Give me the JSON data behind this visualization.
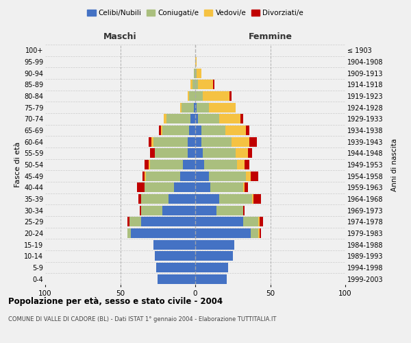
{
  "age_groups": [
    "0-4",
    "5-9",
    "10-14",
    "15-19",
    "20-24",
    "25-29",
    "30-34",
    "35-39",
    "40-44",
    "45-49",
    "50-54",
    "55-59",
    "60-64",
    "65-69",
    "70-74",
    "75-79",
    "80-84",
    "85-89",
    "90-94",
    "95-99",
    "100+"
  ],
  "birth_years": [
    "1999-2003",
    "1994-1998",
    "1989-1993",
    "1984-1988",
    "1979-1983",
    "1974-1978",
    "1969-1973",
    "1964-1968",
    "1959-1963",
    "1954-1958",
    "1949-1953",
    "1944-1948",
    "1939-1943",
    "1934-1938",
    "1929-1933",
    "1924-1928",
    "1919-1923",
    "1914-1918",
    "1909-1913",
    "1904-1908",
    "≤ 1903"
  ],
  "males": {
    "celibi": [
      25,
      26,
      27,
      28,
      43,
      36,
      22,
      18,
      14,
      10,
      8,
      5,
      5,
      4,
      3,
      1,
      0,
      0,
      0,
      0,
      0
    ],
    "coniugati": [
      0,
      0,
      0,
      0,
      2,
      8,
      14,
      18,
      20,
      23,
      22,
      22,
      23,
      18,
      16,
      8,
      4,
      2,
      1,
      0,
      0
    ],
    "vedovi": [
      0,
      0,
      0,
      0,
      0,
      0,
      0,
      0,
      0,
      1,
      1,
      0,
      1,
      1,
      2,
      1,
      1,
      1,
      0,
      0,
      0
    ],
    "divorziati": [
      0,
      0,
      0,
      0,
      0,
      1,
      1,
      2,
      5,
      1,
      3,
      3,
      2,
      1,
      0,
      0,
      0,
      0,
      0,
      0,
      0
    ]
  },
  "females": {
    "nubili": [
      21,
      22,
      25,
      26,
      37,
      32,
      14,
      16,
      10,
      9,
      6,
      5,
      4,
      4,
      2,
      1,
      0,
      0,
      0,
      0,
      0
    ],
    "coniugate": [
      0,
      0,
      0,
      0,
      5,
      10,
      18,
      22,
      22,
      25,
      22,
      22,
      20,
      16,
      14,
      8,
      5,
      2,
      1,
      0,
      0
    ],
    "vedove": [
      0,
      0,
      0,
      0,
      1,
      1,
      0,
      1,
      1,
      3,
      5,
      8,
      12,
      14,
      14,
      18,
      18,
      10,
      3,
      1,
      0
    ],
    "divorziate": [
      0,
      0,
      0,
      0,
      1,
      2,
      1,
      5,
      2,
      5,
      3,
      3,
      5,
      2,
      2,
      0,
      1,
      1,
      0,
      0,
      0
    ]
  },
  "colors": {
    "celibi": "#4472C4",
    "coniugati": "#AABF7E",
    "vedovi": "#F5C242",
    "divorziati": "#C00000"
  },
  "xlim": 100,
  "title": "Popolazione per età, sesso e stato civile - 2004",
  "subtitle": "COMUNE DI VALLE DI CADORE (BL) - Dati ISTAT 1° gennaio 2004 - Elaborazione TUTTITALIA.IT",
  "ylabel": "Fasce di età",
  "ylabel_right": "Anni di nascita",
  "legend_labels": [
    "Celibi/Nubili",
    "Coniugati/e",
    "Vedovi/e",
    "Divorziati/e"
  ],
  "maschi_label": "Maschi",
  "femmine_label": "Femmine",
  "bg_color": "#f0f0f0"
}
